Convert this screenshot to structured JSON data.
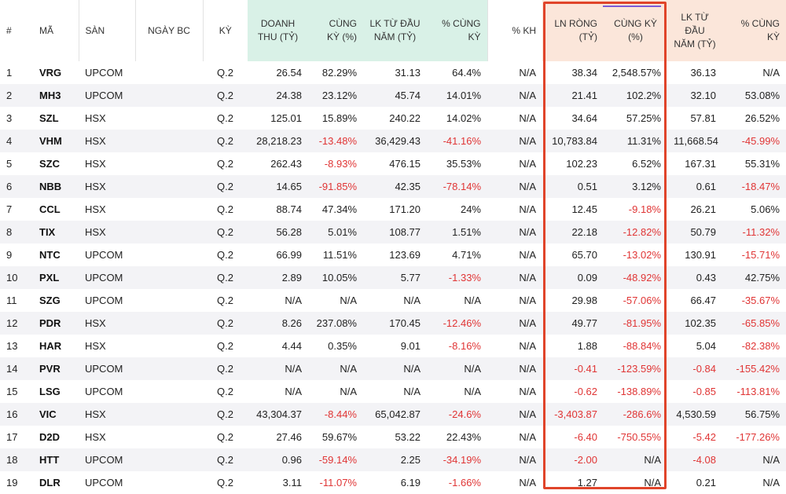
{
  "headers": [
    "#",
    "MÃ",
    "SÀN",
    "NGÀY BC",
    "KỲ",
    "DOANH THU (TỶ)",
    "CÙNG KỲ (%)",
    "LK TỪ ĐẦU NĂM (TỶ)",
    "% CÙNG KỲ",
    "% KH",
    "LN RÒNG (TỶ)",
    "CÙNG KỲ (%)",
    "LK TỪ ĐẦU NĂM (TỶ)",
    "% CÙNG KỲ"
  ],
  "rows": [
    [
      "1",
      "VRG",
      "UPCOM",
      "",
      "Q.2",
      "26.54",
      "82.29%",
      "31.13",
      "64.4%",
      "N/A",
      "38.34",
      "2,548.57%",
      "36.13",
      "N/A"
    ],
    [
      "2",
      "MH3",
      "UPCOM",
      "",
      "Q.2",
      "24.38",
      "23.12%",
      "45.74",
      "14.01%",
      "N/A",
      "21.41",
      "102.2%",
      "32.10",
      "53.08%"
    ],
    [
      "3",
      "SZL",
      "HSX",
      "",
      "Q.2",
      "125.01",
      "15.89%",
      "240.22",
      "14.02%",
      "N/A",
      "34.64",
      "57.25%",
      "57.81",
      "26.52%"
    ],
    [
      "4",
      "VHM",
      "HSX",
      "",
      "Q.2",
      "28,218.23",
      "-13.48%",
      "36,429.43",
      "-41.16%",
      "N/A",
      "10,783.84",
      "11.31%",
      "11,668.54",
      "-45.99%"
    ],
    [
      "5",
      "SZC",
      "HSX",
      "",
      "Q.2",
      "262.43",
      "-8.93%",
      "476.15",
      "35.53%",
      "N/A",
      "102.23",
      "6.52%",
      "167.31",
      "55.31%"
    ],
    [
      "6",
      "NBB",
      "HSX",
      "",
      "Q.2",
      "14.65",
      "-91.85%",
      "42.35",
      "-78.14%",
      "N/A",
      "0.51",
      "3.12%",
      "0.61",
      "-18.47%"
    ],
    [
      "7",
      "CCL",
      "HSX",
      "",
      "Q.2",
      "88.74",
      "47.34%",
      "171.20",
      "24%",
      "N/A",
      "12.45",
      "-9.18%",
      "26.21",
      "5.06%"
    ],
    [
      "8",
      "TIX",
      "HSX",
      "",
      "Q.2",
      "56.28",
      "5.01%",
      "108.77",
      "1.51%",
      "N/A",
      "22.18",
      "-12.82%",
      "50.79",
      "-11.32%"
    ],
    [
      "9",
      "NTC",
      "UPCOM",
      "",
      "Q.2",
      "66.99",
      "11.51%",
      "123.69",
      "4.71%",
      "N/A",
      "65.70",
      "-13.02%",
      "130.91",
      "-15.71%"
    ],
    [
      "10",
      "PXL",
      "UPCOM",
      "",
      "Q.2",
      "2.89",
      "10.05%",
      "5.77",
      "-1.33%",
      "N/A",
      "0.09",
      "-48.92%",
      "0.43",
      "42.75%"
    ],
    [
      "11",
      "SZG",
      "UPCOM",
      "",
      "Q.2",
      "N/A",
      "N/A",
      "N/A",
      "N/A",
      "N/A",
      "29.98",
      "-57.06%",
      "66.47",
      "-35.67%"
    ],
    [
      "12",
      "PDR",
      "HSX",
      "",
      "Q.2",
      "8.26",
      "237.08%",
      "170.45",
      "-12.46%",
      "N/A",
      "49.77",
      "-81.95%",
      "102.35",
      "-65.85%"
    ],
    [
      "13",
      "HAR",
      "HSX",
      "",
      "Q.2",
      "4.44",
      "0.35%",
      "9.01",
      "-8.16%",
      "N/A",
      "1.88",
      "-88.84%",
      "5.04",
      "-82.38%"
    ],
    [
      "14",
      "PVR",
      "UPCOM",
      "",
      "Q.2",
      "N/A",
      "N/A",
      "N/A",
      "N/A",
      "N/A",
      "-0.41",
      "-123.59%",
      "-0.84",
      "-155.42%"
    ],
    [
      "15",
      "LSG",
      "UPCOM",
      "",
      "Q.2",
      "N/A",
      "N/A",
      "N/A",
      "N/A",
      "N/A",
      "-0.62",
      "-138.89%",
      "-0.85",
      "-113.81%"
    ],
    [
      "16",
      "VIC",
      "HSX",
      "",
      "Q.2",
      "43,304.37",
      "-8.44%",
      "65,042.87",
      "-24.6%",
      "N/A",
      "-3,403.87",
      "-286.6%",
      "4,530.59",
      "56.75%"
    ],
    [
      "17",
      "D2D",
      "HSX",
      "",
      "Q.2",
      "27.46",
      "59.67%",
      "53.22",
      "22.43%",
      "N/A",
      "-6.40",
      "-750.55%",
      "-5.42",
      "-177.26%"
    ],
    [
      "18",
      "HTT",
      "UPCOM",
      "",
      "Q.2",
      "0.96",
      "-59.14%",
      "2.25",
      "-34.19%",
      "N/A",
      "-2.00",
      "N/A",
      "-4.08",
      "N/A"
    ],
    [
      "19",
      "DLR",
      "UPCOM",
      "",
      "Q.2",
      "3.11",
      "-11.07%",
      "6.19",
      "-1.66%",
      "N/A",
      "1.27",
      "N/A",
      "0.21",
      "N/A"
    ]
  ],
  "colors": {
    "negative": "#e03535",
    "revenue_header_bg": "#d9f1e7",
    "profit_header_bg": "#fbe6da",
    "highlight_border": "#e0442a"
  }
}
